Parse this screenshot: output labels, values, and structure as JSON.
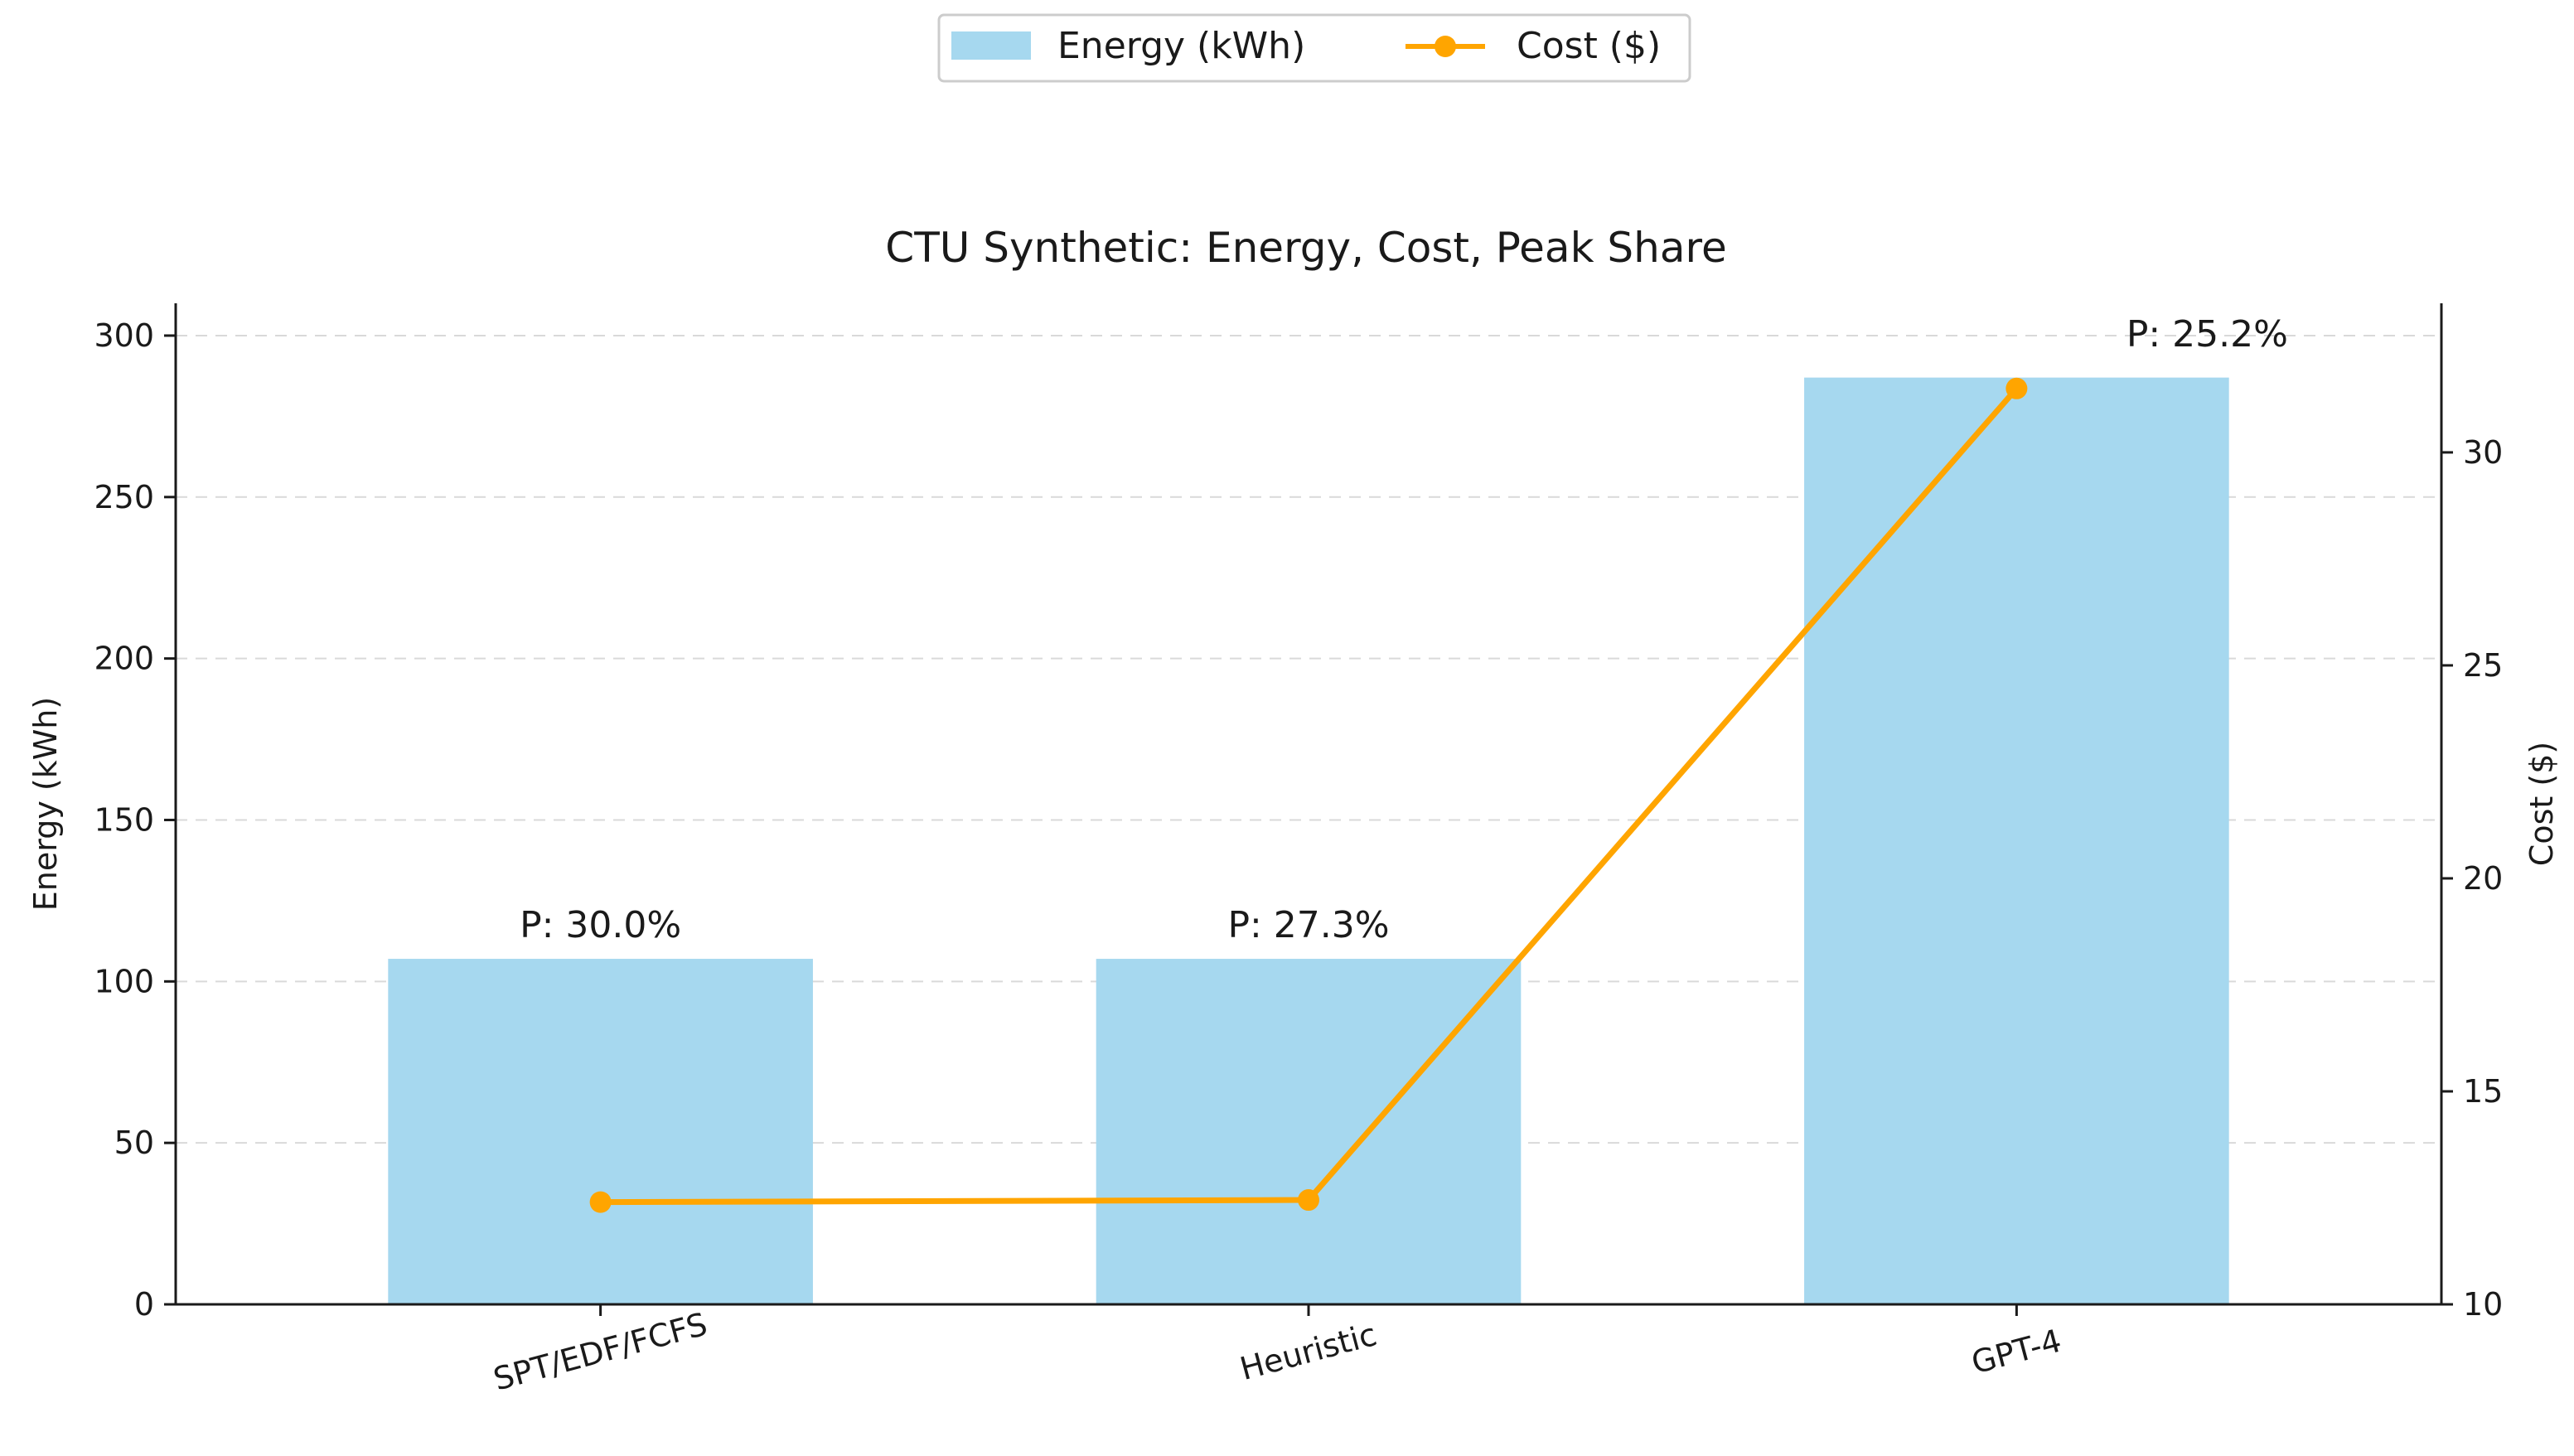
{
  "chart_data": {
    "type": "bar",
    "title": "CTU Synthetic: Energy, Cost, Peak Share",
    "categories": [
      "SPT/EDF/FCFS",
      "Heuristic",
      "GPT-4"
    ],
    "series": [
      {
        "name": "Energy (kWh)",
        "type": "bar",
        "axis": "left",
        "values": [
          107,
          107,
          287
        ],
        "color": "#a6d8ef"
      },
      {
        "name": "Cost ($)",
        "type": "line",
        "axis": "right",
        "values": [
          12.4,
          12.45,
          31.5
        ],
        "color": "#ffa500"
      }
    ],
    "bar_labels": [
      "P: 30.0%",
      "P: 27.3%",
      "P: 25.2%"
    ],
    "ylabel": "Energy (kWh)",
    "y2label": "Cost ($)",
    "ylim": [
      0,
      310
    ],
    "y2lim": [
      10,
      33.5
    ],
    "yticks": [
      0,
      50,
      100,
      150,
      200,
      250,
      300
    ],
    "y2ticks": [
      10,
      15,
      20,
      25,
      30
    ],
    "grid": true,
    "legend_position": "top-center"
  }
}
